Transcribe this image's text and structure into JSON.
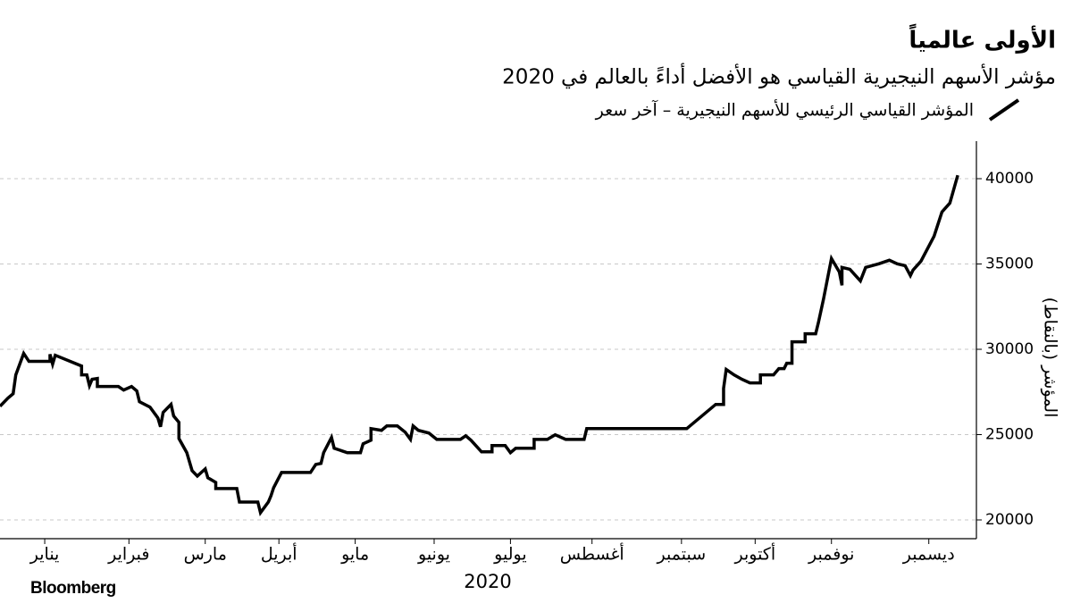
{
  "chart_data": {
    "type": "line",
    "title": "الأولى عالمياً",
    "subtitle": "مؤشر الأسهم النيجيرية القياسي هو الأفضل أداءً بالعالم في 2020",
    "y_label": "المؤشر (بالنقاط)",
    "x_label": "2020",
    "source": "Bloomberg",
    "xlim": [
      0,
      366
    ],
    "xticks": [
      {
        "value": 17,
        "label": "يناير"
      },
      {
        "value": 49,
        "label": "فبراير"
      },
      {
        "value": 78,
        "label": "مارس"
      },
      {
        "value": 106,
        "label": "أبريل"
      },
      {
        "value": 135,
        "label": "مايو"
      },
      {
        "value": 165,
        "label": "يونيو"
      },
      {
        "value": 194,
        "label": "يوليو"
      },
      {
        "value": 225,
        "label": "أغسطس"
      },
      {
        "value": 259,
        "label": "سبتمبر"
      },
      {
        "value": 287,
        "label": "أكتوبر"
      },
      {
        "value": 316,
        "label": "نوفمبر"
      },
      {
        "value": 353,
        "label": "ديسمبر"
      }
    ],
    "ylim": [
      18900,
      42200
    ],
    "yticks": [
      20000,
      25000,
      30000,
      35000,
      40000
    ],
    "grid": true,
    "series": [
      {
        "name": "المؤشر القياسي الرئيسي للأسهم النيجيرية – آخر سعر",
        "color": "#000000",
        "x": [
          0,
          3,
          5,
          6,
          9,
          11,
          19,
          19,
          20,
          21,
          31,
          31,
          33,
          34,
          35,
          37,
          37,
          45,
          47,
          50,
          52,
          53,
          57,
          60,
          61,
          62,
          65,
          66,
          68,
          68,
          71,
          73,
          75,
          78,
          79,
          82,
          82,
          90,
          91,
          98,
          99,
          102,
          103,
          104,
          107,
          118,
          120,
          122,
          123,
          126,
          127,
          132,
          137,
          138,
          141,
          141,
          145,
          147,
          151,
          154,
          156,
          157,
          159,
          163,
          166,
          175,
          177,
          179,
          183,
          187,
          187,
          192,
          194,
          196,
          198,
          203,
          203,
          208,
          211,
          215,
          222,
          223,
          261,
          272,
          275,
          275,
          276,
          279,
          282,
          285,
          289,
          289,
          294,
          296,
          298,
          299,
          301,
          301,
          306,
          306,
          310,
          311,
          313,
          316,
          319,
          320,
          320,
          323,
          327,
          329,
          334,
          338,
          341,
          344,
          346,
          347,
          350,
          355,
          358,
          361,
          364
        ],
        "values": [
          26660,
          27140,
          27400,
          28500,
          29760,
          29290,
          29290,
          29710,
          29130,
          29650,
          29020,
          28500,
          28500,
          27870,
          28240,
          28290,
          27820,
          27820,
          27610,
          27820,
          27560,
          26930,
          26610,
          25980,
          25460,
          26300,
          26770,
          26090,
          25720,
          24770,
          23940,
          22890,
          22570,
          22990,
          22470,
          22200,
          21840,
          21840,
          21050,
          21050,
          20420,
          21050,
          21420,
          21890,
          22780,
          22780,
          23250,
          23310,
          23940,
          24830,
          24200,
          23940,
          23940,
          24460,
          24670,
          25350,
          25250,
          25510,
          25510,
          25140,
          24720,
          25510,
          25250,
          25090,
          24720,
          24720,
          24930,
          24670,
          23990,
          23990,
          24360,
          24360,
          23940,
          24200,
          24200,
          24200,
          24720,
          24720,
          24990,
          24720,
          24720,
          25350,
          25350,
          26770,
          26770,
          27710,
          28820,
          28500,
          28240,
          28030,
          28030,
          28500,
          28500,
          28870,
          28870,
          29180,
          29180,
          30440,
          30440,
          30910,
          30910,
          31540,
          32960,
          35320,
          34530,
          33750,
          34800,
          34690,
          34010,
          34800,
          35010,
          35220,
          35010,
          34900,
          34320,
          34640,
          35160,
          36630,
          38050,
          38570,
          40200
        ]
      }
    ]
  }
}
